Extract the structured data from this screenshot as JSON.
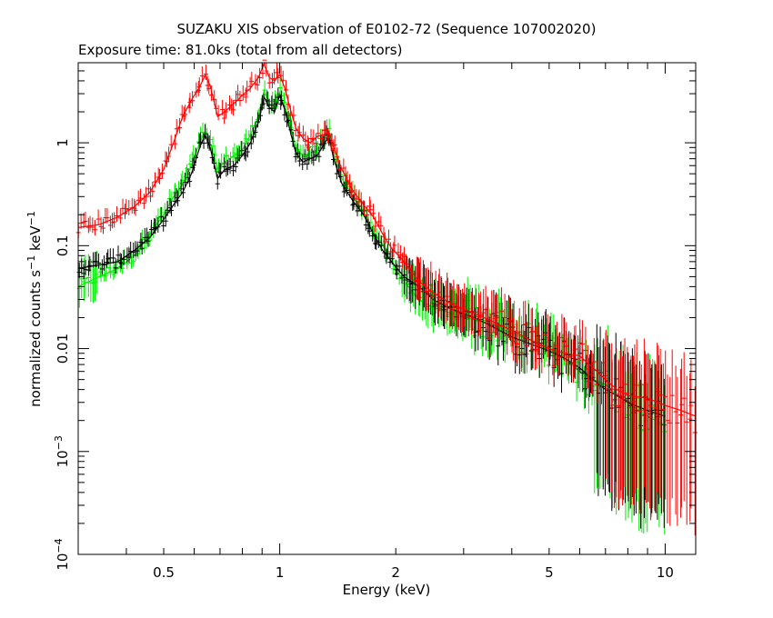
{
  "chart_data": {
    "type": "scatter",
    "title": "SUZAKU XIS observation of E0102-72 (Sequence 107002020)",
    "subtitle": "Exposure time: 81.0ks (total from all detectors)",
    "xlabel": "Energy (keV)",
    "ylabel": {
      "prefix": "normalized counts s",
      "exp1": "−1",
      "mid": " keV",
      "exp2": "−1"
    },
    "x_scale": "log",
    "y_scale": "log",
    "xlim": [
      0.3,
      12
    ],
    "ylim": [
      0.0001,
      6
    ],
    "x_ticks": [
      {
        "value": 0.5,
        "label": "0.5"
      },
      {
        "value": 1,
        "label": "1"
      },
      {
        "value": 2,
        "label": "2"
      },
      {
        "value": 5,
        "label": "5"
      },
      {
        "value": 10,
        "label": "10"
      }
    ],
    "y_ticks": [
      {
        "value": 0.0001,
        "base": "10",
        "exp": "−4"
      },
      {
        "value": 0.001,
        "base": "10",
        "exp": "−3"
      },
      {
        "value": 0.01,
        "label": "0.01"
      },
      {
        "value": 0.1,
        "label": "0.1"
      },
      {
        "value": 1,
        "label": "1"
      }
    ],
    "grid": false,
    "series": [
      {
        "color": "#ff0000",
        "points": [
          [
            0.3,
            0.15
          ],
          [
            0.34,
            0.16
          ],
          [
            0.38,
            0.19
          ],
          [
            0.42,
            0.24
          ],
          [
            0.46,
            0.33
          ],
          [
            0.5,
            0.55
          ],
          [
            0.53,
            1.0
          ],
          [
            0.56,
            1.8
          ],
          [
            0.59,
            2.6
          ],
          [
            0.62,
            3.5
          ],
          [
            0.64,
            4.5
          ],
          [
            0.66,
            3.6
          ],
          [
            0.69,
            1.8
          ],
          [
            0.72,
            2.0
          ],
          [
            0.76,
            2.4
          ],
          [
            0.8,
            2.9
          ],
          [
            0.84,
            3.4
          ],
          [
            0.88,
            4.3
          ],
          [
            0.91,
            5.8
          ],
          [
            0.94,
            4.3
          ],
          [
            0.97,
            4.0
          ],
          [
            1.0,
            4.6
          ],
          [
            1.03,
            3.4
          ],
          [
            1.07,
            2.0
          ],
          [
            1.1,
            1.4
          ],
          [
            1.15,
            1.1
          ],
          [
            1.2,
            1.0
          ],
          [
            1.25,
            1.15
          ],
          [
            1.3,
            1.2
          ],
          [
            1.34,
            1.3
          ],
          [
            1.38,
            0.9
          ],
          [
            1.45,
            0.55
          ],
          [
            1.55,
            0.34
          ],
          [
            1.65,
            0.25
          ],
          [
            1.75,
            0.19
          ],
          [
            1.85,
            0.13
          ],
          [
            1.95,
            0.095
          ],
          [
            2.1,
            0.07
          ],
          [
            2.3,
            0.045
          ],
          [
            2.5,
            0.035
          ],
          [
            2.8,
            0.027
          ],
          [
            3.2,
            0.022
          ],
          [
            3.6,
            0.018
          ],
          [
            4.0,
            0.015
          ],
          [
            4.5,
            0.012
          ],
          [
            5.0,
            0.01
          ],
          [
            5.5,
            0.009
          ],
          [
            6.0,
            0.0085
          ],
          [
            6.5,
            0.0065
          ],
          [
            7.0,
            0.005
          ],
          [
            7.5,
            0.004
          ],
          [
            8.0,
            0.0035
          ],
          [
            9.0,
            0.0033
          ],
          [
            10.0,
            0.0028
          ],
          [
            11.0,
            0.0025
          ],
          [
            12.0,
            0.0022
          ]
        ]
      },
      {
        "color": "#000000",
        "points": [
          [
            0.3,
            0.06
          ],
          [
            0.34,
            0.065
          ],
          [
            0.38,
            0.07
          ],
          [
            0.42,
            0.09
          ],
          [
            0.46,
            0.12
          ],
          [
            0.5,
            0.18
          ],
          [
            0.53,
            0.25
          ],
          [
            0.56,
            0.33
          ],
          [
            0.59,
            0.5
          ],
          [
            0.62,
            0.9
          ],
          [
            0.64,
            1.2
          ],
          [
            0.66,
            0.9
          ],
          [
            0.69,
            0.45
          ],
          [
            0.72,
            0.55
          ],
          [
            0.76,
            0.6
          ],
          [
            0.8,
            0.75
          ],
          [
            0.84,
            1.0
          ],
          [
            0.88,
            1.6
          ],
          [
            0.91,
            2.8
          ],
          [
            0.94,
            2.2
          ],
          [
            0.97,
            2.0
          ],
          [
            1.0,
            2.9
          ],
          [
            1.03,
            2.1
          ],
          [
            1.07,
            1.2
          ],
          [
            1.1,
            0.8
          ],
          [
            1.15,
            0.65
          ],
          [
            1.2,
            0.7
          ],
          [
            1.25,
            0.75
          ],
          [
            1.3,
            0.95
          ],
          [
            1.34,
            1.15
          ],
          [
            1.38,
            0.7
          ],
          [
            1.45,
            0.4
          ],
          [
            1.55,
            0.27
          ],
          [
            1.65,
            0.2
          ],
          [
            1.75,
            0.13
          ],
          [
            1.85,
            0.09
          ],
          [
            1.95,
            0.07
          ],
          [
            2.1,
            0.05
          ],
          [
            2.3,
            0.04
          ],
          [
            2.5,
            0.03
          ],
          [
            2.8,
            0.024
          ],
          [
            3.2,
            0.02
          ],
          [
            3.6,
            0.016
          ],
          [
            4.0,
            0.013
          ],
          [
            4.5,
            0.011
          ],
          [
            5.0,
            0.0095
          ],
          [
            5.5,
            0.008
          ],
          [
            6.0,
            0.0065
          ],
          [
            6.5,
            0.005
          ],
          [
            7.0,
            0.004
          ],
          [
            7.5,
            0.0035
          ],
          [
            8.0,
            0.003
          ],
          [
            9.0,
            0.0025
          ],
          [
            10.0,
            0.0022
          ]
        ]
      },
      {
        "color": "#00ee00",
        "points": [
          [
            0.3,
            0.04
          ],
          [
            0.34,
            0.05
          ],
          [
            0.38,
            0.06
          ],
          [
            0.42,
            0.08
          ],
          [
            0.46,
            0.13
          ],
          [
            0.5,
            0.2
          ],
          [
            0.53,
            0.3
          ],
          [
            0.56,
            0.4
          ],
          [
            0.59,
            0.6
          ],
          [
            0.62,
            1.0
          ],
          [
            0.64,
            1.3
          ],
          [
            0.66,
            1.0
          ],
          [
            0.69,
            0.55
          ],
          [
            0.72,
            0.65
          ],
          [
            0.76,
            0.75
          ],
          [
            0.8,
            0.85
          ],
          [
            0.84,
            1.2
          ],
          [
            0.88,
            1.8
          ],
          [
            0.91,
            3.2
          ],
          [
            0.94,
            2.4
          ],
          [
            0.97,
            2.2
          ],
          [
            1.0,
            3.1
          ],
          [
            1.03,
            2.2
          ],
          [
            1.07,
            1.4
          ],
          [
            1.1,
            0.9
          ],
          [
            1.15,
            0.75
          ],
          [
            1.2,
            0.8
          ],
          [
            1.25,
            0.85
          ],
          [
            1.3,
            1.1
          ],
          [
            1.34,
            1.3
          ],
          [
            1.38,
            0.75
          ],
          [
            1.45,
            0.45
          ],
          [
            1.55,
            0.3
          ],
          [
            1.65,
            0.2
          ],
          [
            1.75,
            0.14
          ],
          [
            1.85,
            0.1
          ],
          [
            1.95,
            0.07
          ],
          [
            2.1,
            0.045
          ],
          [
            2.3,
            0.03
          ],
          [
            2.5,
            0.025
          ],
          [
            2.8,
            0.022
          ],
          [
            3.2,
            0.019
          ],
          [
            3.6,
            0.017
          ],
          [
            4.0,
            0.014
          ],
          [
            4.5,
            0.012
          ],
          [
            5.0,
            0.01
          ],
          [
            5.5,
            0.008
          ],
          [
            6.0,
            0.006
          ],
          [
            6.5,
            0.005
          ],
          [
            7.0,
            0.0045
          ],
          [
            7.5,
            0.0035
          ],
          [
            8.0,
            0.003
          ],
          [
            9.0,
            0.0022
          ],
          [
            10.0,
            0.0018
          ]
        ]
      }
    ]
  }
}
